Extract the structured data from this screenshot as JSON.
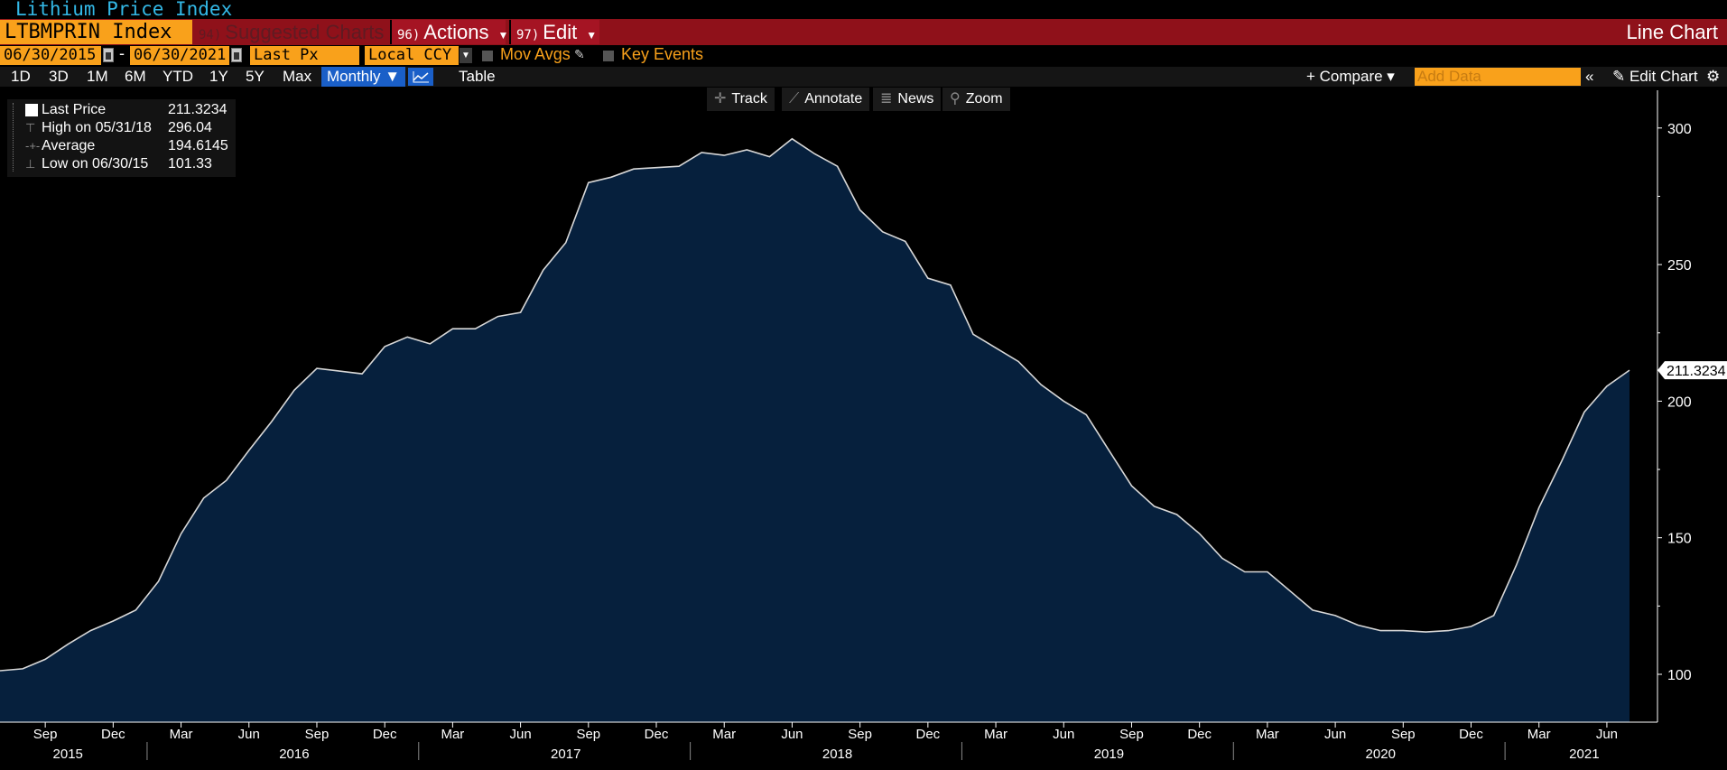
{
  "header": {
    "title": "Lithium Price Index",
    "ticker": "LTBMPRIN Index",
    "suggested_num": "94)",
    "suggested_label": "Suggested Charts",
    "actions_num": "96)",
    "actions_label": "Actions",
    "edit_num": "97)",
    "edit_label": "Edit",
    "chart_type": "Line Chart"
  },
  "params": {
    "start_date": "06/30/2015",
    "end_date": "06/30/2021",
    "dash": "-",
    "field": "Last Px",
    "currency": "Local CCY",
    "mov_avgs": "Mov Avgs",
    "key_events": "Key Events"
  },
  "periods": {
    "items": [
      "1D",
      "3D",
      "1M",
      "6M",
      "YTD",
      "1Y",
      "5Y",
      "Max"
    ],
    "frequency": "Monthly ▼",
    "table": "Table",
    "compare": "+ Compare ▾",
    "add_data_placeholder": "Add Data",
    "collapse": "«",
    "edit_chart": "✎ Edit Chart",
    "settings": "⚙"
  },
  "tools": {
    "track": "Track",
    "annotate": "Annotate",
    "news": "News",
    "zoom": "Zoom"
  },
  "legend": {
    "last_label": "Last Price",
    "last_value": "211.3234",
    "high_label": "High on 05/31/18",
    "high_value": "296.04",
    "avg_label": "Average",
    "avg_value": "194.6145",
    "low_label": "Low on 06/30/15",
    "low_value": "101.33"
  },
  "colors": {
    "background": "#000000",
    "area_fill": "#06203d",
    "line": "#d8d8d8",
    "accent_orange": "#f9a11b",
    "bar_red": "#8f111a",
    "title_blue": "#33b8e6"
  },
  "chart_data": {
    "type": "area",
    "title": "Lithium Price Index",
    "xlabel": "",
    "ylabel": "",
    "ylim": [
      85,
      310
    ],
    "yticks": [
      100,
      150,
      200,
      250,
      300
    ],
    "x_tick_labels": [
      "Sep",
      "Dec",
      "Mar",
      "Jun",
      "Sep",
      "Dec",
      "Mar",
      "Jun",
      "Sep",
      "Dec",
      "Mar",
      "Jun",
      "Sep",
      "Dec",
      "Mar",
      "Jun",
      "Sep",
      "Dec",
      "Mar",
      "Jun",
      "Sep",
      "Dec",
      "Mar",
      "Jun"
    ],
    "x_tick_months": [
      2,
      5,
      8,
      11,
      14,
      17,
      20,
      23,
      26,
      29,
      32,
      35,
      38,
      41,
      44,
      47,
      50,
      53,
      56,
      59,
      62,
      65,
      68,
      71
    ],
    "year_labels": [
      "2015",
      "2016",
      "2017",
      "2018",
      "2019",
      "2020",
      "2021"
    ],
    "last_value_label": "211.3234",
    "series": [
      {
        "dates": [
          "2015-06",
          "2015-07",
          "2015-08",
          "2015-09",
          "2015-10",
          "2015-11",
          "2015-12",
          "2016-01",
          "2016-02",
          "2016-03",
          "2016-04",
          "2016-05",
          "2016-06",
          "2016-07",
          "2016-08",
          "2016-09",
          "2016-10",
          "2016-11",
          "2016-12",
          "2017-01",
          "2017-02",
          "2017-03",
          "2017-04",
          "2017-05",
          "2017-06",
          "2017-07",
          "2017-08",
          "2017-09",
          "2017-10",
          "2017-11",
          "2017-12",
          "2018-01",
          "2018-02",
          "2018-03",
          "2018-04",
          "2018-05",
          "2018-06",
          "2018-07",
          "2018-08",
          "2018-09",
          "2018-10",
          "2018-11",
          "2018-12",
          "2019-01",
          "2019-02",
          "2019-03",
          "2019-04",
          "2019-05",
          "2019-06",
          "2019-07",
          "2019-08",
          "2019-09",
          "2019-10",
          "2019-11",
          "2019-12",
          "2020-01",
          "2020-02",
          "2020-03",
          "2020-04",
          "2020-05",
          "2020-06",
          "2020-07",
          "2020-08",
          "2020-09",
          "2020-10",
          "2020-11",
          "2020-12",
          "2021-01",
          "2021-02",
          "2021-03",
          "2021-04",
          "2021-05",
          "2021-06"
        ],
        "values": [
          101.33,
          102,
          105.5,
          111,
          116,
          119.5,
          123.5,
          134,
          151.5,
          164.5,
          171,
          182,
          192.5,
          204,
          212,
          211,
          210,
          220,
          223.5,
          221,
          226.5,
          226.5,
          231,
          232.5,
          248,
          258,
          280,
          282,
          285,
          285.5,
          286,
          291,
          290,
          292,
          289.5,
          296.04,
          290.5,
          286,
          270,
          262,
          258.5,
          245,
          242.5,
          224.5,
          219.5,
          214.5,
          206,
          200,
          195,
          182,
          169,
          161.5,
          158.5,
          151.5,
          142.5,
          137.5,
          137.5,
          130.5,
          123.5,
          121.5,
          118,
          116,
          116,
          115.5,
          116,
          117.5,
          121.5,
          140,
          161,
          178,
          196,
          205.5,
          211.3234
        ]
      }
    ]
  }
}
